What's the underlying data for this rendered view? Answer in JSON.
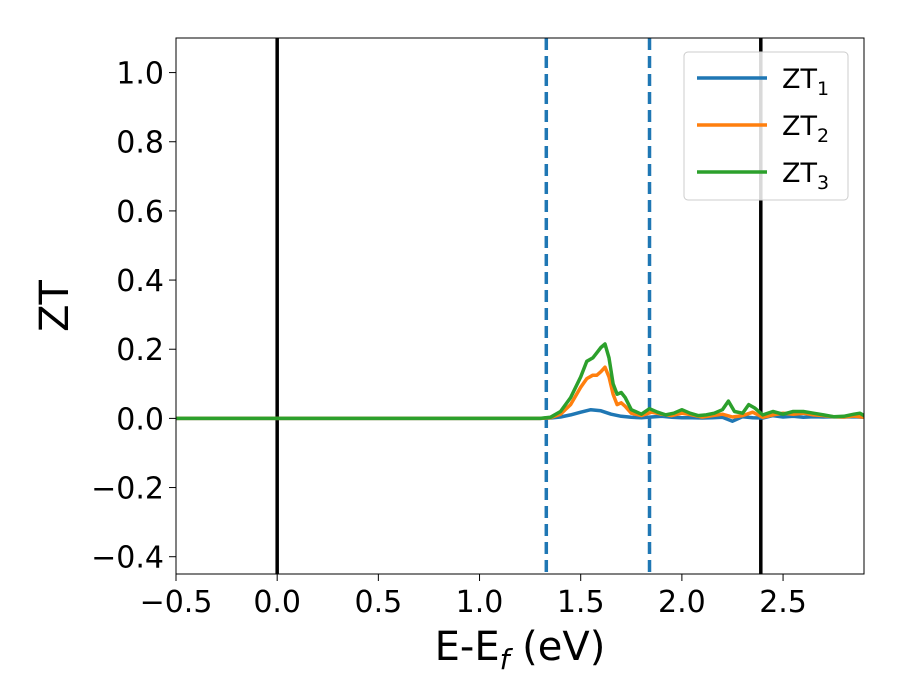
{
  "chart_data": {
    "type": "line",
    "xlabel": "E-E",
    "xlabel_sub": "f",
    "xlabel_unit": " (eV)",
    "ylabel": "ZT",
    "xlim": [
      -0.5,
      2.9
    ],
    "ylim": [
      -0.45,
      1.1
    ],
    "x_ticks": [
      -0.5,
      0.0,
      0.5,
      1.0,
      1.5,
      2.0,
      2.5
    ],
    "x_tick_labels": [
      "−0.5",
      "0.0",
      "0.5",
      "1.0",
      "1.5",
      "2.0",
      "2.5"
    ],
    "y_ticks": [
      -0.4,
      -0.2,
      0.0,
      0.2,
      0.4,
      0.6,
      0.8,
      1.0
    ],
    "y_tick_labels": [
      "−0.4",
      "−0.2",
      "0.0",
      "0.2",
      "0.4",
      "0.6",
      "0.8",
      "1.0"
    ],
    "grid": false,
    "legend_position": "top-right",
    "vertical_lines": [
      {
        "x": 0.0,
        "style": "solid",
        "color": "#000000"
      },
      {
        "x": 2.39,
        "style": "solid",
        "color": "#000000"
      },
      {
        "x": 1.33,
        "style": "dashed",
        "color": "#1f77b4"
      },
      {
        "x": 1.84,
        "style": "dashed",
        "color": "#1f77b4"
      }
    ],
    "series": [
      {
        "name": "ZT",
        "sub": "1",
        "color": "#1f77b4",
        "x": [
          -0.5,
          1.3,
          1.35,
          1.4,
          1.45,
          1.5,
          1.55,
          1.6,
          1.65,
          1.7,
          1.75,
          1.8,
          1.85,
          1.9,
          1.95,
          2.0,
          2.05,
          2.1,
          2.15,
          2.2,
          2.25,
          2.3,
          2.35,
          2.4,
          2.45,
          2.5,
          2.55,
          2.6,
          2.65,
          2.7,
          2.75,
          2.8,
          2.85,
          2.9
        ],
        "y": [
          0,
          0,
          0.001,
          0.004,
          0.01,
          0.018,
          0.025,
          0.022,
          0.012,
          0.006,
          0.003,
          0.002,
          0.004,
          0.006,
          0.003,
          0.002,
          0.002,
          0.001,
          0.002,
          0.003,
          -0.008,
          0.005,
          0.002,
          0.001,
          0.008,
          0.004,
          0.006,
          0.003,
          0.005,
          0.004,
          0.005,
          0.004,
          0.005,
          0.003
        ]
      },
      {
        "name": "ZT",
        "sub": "2",
        "color": "#ff7f0e",
        "x": [
          -0.5,
          1.3,
          1.35,
          1.4,
          1.45,
          1.5,
          1.53,
          1.56,
          1.58,
          1.6,
          1.62,
          1.64,
          1.66,
          1.68,
          1.7,
          1.72,
          1.75,
          1.8,
          1.85,
          1.9,
          1.95,
          2.0,
          2.05,
          2.1,
          2.15,
          2.2,
          2.25,
          2.3,
          2.35,
          2.4,
          2.45,
          2.5,
          2.55,
          2.6,
          2.65,
          2.7,
          2.75,
          2.8,
          2.85,
          2.9
        ],
        "y": [
          0,
          0,
          0.002,
          0.012,
          0.04,
          0.09,
          0.115,
          0.125,
          0.125,
          0.135,
          0.148,
          0.12,
          0.07,
          0.04,
          0.045,
          0.035,
          0.015,
          0.008,
          0.018,
          0.012,
          0.008,
          0.015,
          0.01,
          0.004,
          0.008,
          0.012,
          0.004,
          0.008,
          0.018,
          0.003,
          0.01,
          0.015,
          0.012,
          0.015,
          0.01,
          0.008,
          0.005,
          0.004,
          0.007,
          0.003
        ]
      },
      {
        "name": "ZT",
        "sub": "3",
        "color": "#2ca02c",
        "x": [
          -0.5,
          1.3,
          1.35,
          1.4,
          1.45,
          1.5,
          1.53,
          1.56,
          1.58,
          1.6,
          1.62,
          1.64,
          1.66,
          1.68,
          1.7,
          1.72,
          1.75,
          1.8,
          1.84,
          1.88,
          1.92,
          1.96,
          2.0,
          2.04,
          2.08,
          2.12,
          2.16,
          2.2,
          2.23,
          2.26,
          2.3,
          2.33,
          2.36,
          2.4,
          2.45,
          2.5,
          2.55,
          2.6,
          2.65,
          2.7,
          2.75,
          2.8,
          2.85,
          2.88,
          2.9
        ],
        "y": [
          0,
          0,
          0.003,
          0.02,
          0.06,
          0.12,
          0.165,
          0.175,
          0.19,
          0.205,
          0.215,
          0.175,
          0.1,
          0.07,
          0.075,
          0.06,
          0.025,
          0.012,
          0.028,
          0.018,
          0.01,
          0.015,
          0.025,
          0.015,
          0.008,
          0.01,
          0.015,
          0.025,
          0.05,
          0.02,
          0.015,
          0.04,
          0.03,
          0.01,
          0.02,
          0.012,
          0.02,
          0.02,
          0.015,
          0.01,
          0.005,
          0.006,
          0.012,
          0.015,
          0.008
        ]
      }
    ]
  }
}
